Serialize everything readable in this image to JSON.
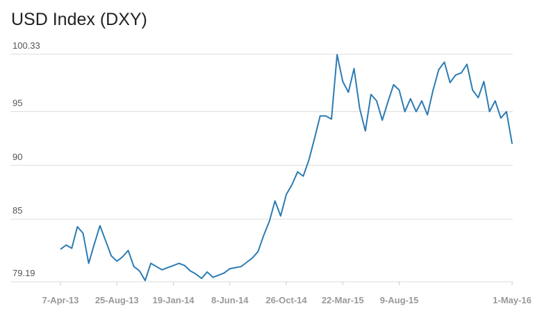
{
  "chart_data": {
    "type": "line",
    "title": "USD Index (DXY)",
    "categories": [
      "7-Apr-13",
      null,
      null,
      null,
      null,
      null,
      null,
      null,
      null,
      null,
      "25-Aug-13",
      null,
      null,
      null,
      null,
      null,
      null,
      null,
      null,
      null,
      "19-Jan-14",
      null,
      null,
      null,
      null,
      null,
      null,
      null,
      null,
      null,
      "8-Jun-14",
      null,
      null,
      null,
      null,
      null,
      null,
      null,
      null,
      null,
      "26-Oct-14",
      null,
      null,
      null,
      null,
      null,
      null,
      null,
      null,
      null,
      "22-Mar-15",
      null,
      null,
      null,
      null,
      null,
      null,
      null,
      null,
      null,
      "9-Aug-15",
      null,
      null,
      null,
      null,
      null,
      null,
      null,
      null,
      null,
      null,
      null,
      null,
      null,
      null,
      null,
      null,
      null,
      null,
      null,
      "1-May-16"
    ],
    "series": [
      {
        "color": "#2b7bb3",
        "values": [
          82.2,
          82.6,
          82.3,
          84.3,
          83.7,
          80.9,
          82.7,
          84.4,
          83.0,
          81.6,
          81.1,
          81.5,
          82.1,
          80.6,
          80.2,
          79.3,
          80.9,
          80.6,
          80.3,
          80.5,
          80.7,
          80.9,
          80.7,
          80.2,
          79.9,
          79.5,
          80.1,
          79.6,
          79.8,
          80.0,
          80.4,
          80.5,
          80.6,
          81.0,
          81.4,
          82.0,
          83.5,
          84.8,
          86.7,
          85.3,
          87.3,
          88.2,
          89.4,
          89.0,
          90.5,
          92.5,
          94.6,
          94.6,
          94.3,
          100.3,
          97.8,
          96.8,
          99.0,
          95.3,
          93.2,
          96.6,
          96.0,
          94.2,
          95.9,
          97.5,
          97.0,
          95.0,
          96.2,
          95.0,
          96.0,
          94.7,
          97.0,
          98.9,
          99.6,
          97.7,
          98.4,
          98.6,
          99.4,
          97.0,
          96.3,
          97.8,
          95.0,
          96.0,
          94.4,
          95.0,
          92.0
        ]
      }
    ],
    "ylim": [
      79.19,
      100.33
    ],
    "yticks": [
      79.19,
      85,
      90,
      95,
      100.33
    ],
    "grid": true
  }
}
